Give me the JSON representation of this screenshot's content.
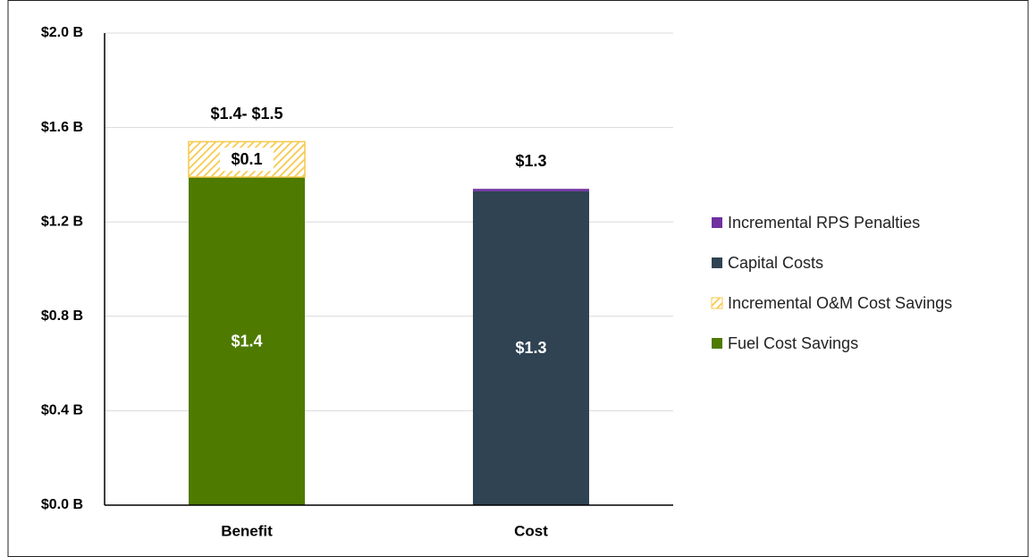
{
  "chart_data": {
    "type": "stacked_bar",
    "categories": [
      "Benefit",
      "Cost"
    ],
    "series": [
      {
        "name": "Fuel Cost Savings",
        "color": "#4e7a00",
        "values": [
          1.39,
          null
        ],
        "value_labels": [
          "$1.4",
          null
        ]
      },
      {
        "name": "Incremental O&M Cost Savings",
        "color": "#f7c94b",
        "hatch": true,
        "values": [
          0.15,
          null
        ],
        "value_labels": [
          "$0.1",
          null
        ]
      },
      {
        "name": "Capital Costs",
        "color": "#2f4352",
        "values": [
          null,
          1.33
        ],
        "value_labels": [
          null,
          "$1.3"
        ]
      },
      {
        "name": "Incremental RPS Penalties",
        "color": "#7030a0",
        "values": [
          null,
          0.01
        ],
        "value_labels": [
          null,
          null
        ]
      }
    ],
    "total_labels": [
      "$1.4- $1.5",
      "$1.3"
    ],
    "ylim": [
      0,
      2.0
    ],
    "yticks": [
      {
        "value": 0,
        "label": "$0.0 B"
      },
      {
        "value": 0.4,
        "label": "$0.4 B"
      },
      {
        "value": 0.8,
        "label": "$0.8 B"
      },
      {
        "value": 1.2,
        "label": "$1.2 B"
      },
      {
        "value": 1.6,
        "label": "$1.6 B"
      },
      {
        "value": 2.0,
        "label": "$2.0 B"
      }
    ],
    "grid": true,
    "legend": "right"
  }
}
